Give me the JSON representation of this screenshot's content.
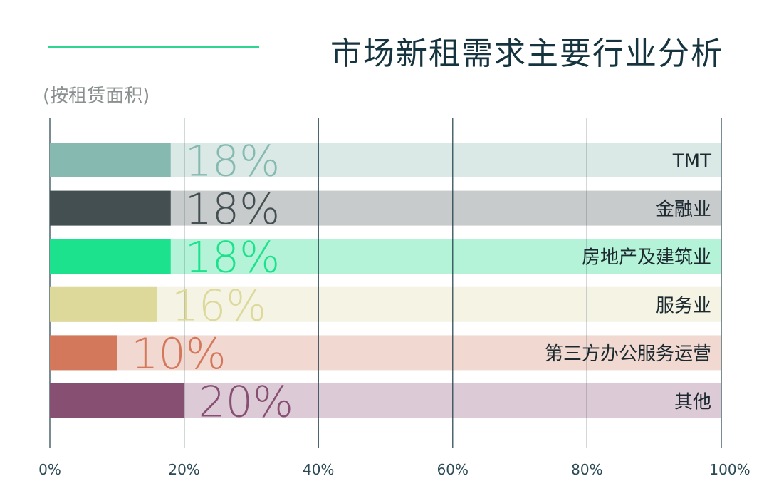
{
  "title": "市场新租需求主要行业分析",
  "subtitle": "(按租赁面积)",
  "chart_data": {
    "type": "bar",
    "orientation": "horizontal",
    "categories": [
      "TMT",
      "金融业",
      "房地产及建筑业",
      "服务业",
      "第三方办公服务运营",
      "其他"
    ],
    "values": [
      18,
      18,
      18,
      16,
      10,
      20
    ],
    "value_labels": [
      "18%",
      "18%",
      "18%",
      "16%",
      "10%",
      "20%"
    ],
    "xlim": [
      0,
      100
    ],
    "x_ticks": [
      0,
      20,
      40,
      60,
      80,
      100
    ],
    "x_tick_labels": [
      "0%",
      "20%",
      "40%",
      "60%",
      "80%",
      "100%"
    ],
    "grid": true,
    "colors": {
      "bars": [
        "#86b9b0",
        "#444f51",
        "#1de28d",
        "#dcd99a",
        "#d4785c",
        "#874f72"
      ],
      "tracks": [
        "#dbe9e6",
        "#c8cbcb",
        "#b4f3d8",
        "#f4f3e4",
        "#f1d9d1",
        "#dccbd7"
      ],
      "labels": [
        "#86b9b0",
        "#444f51",
        "#1de28d",
        "#dcd99a",
        "#d4785c",
        "#874f72"
      ],
      "accent": "#2fd690",
      "grid": "#1f3f4a"
    }
  }
}
